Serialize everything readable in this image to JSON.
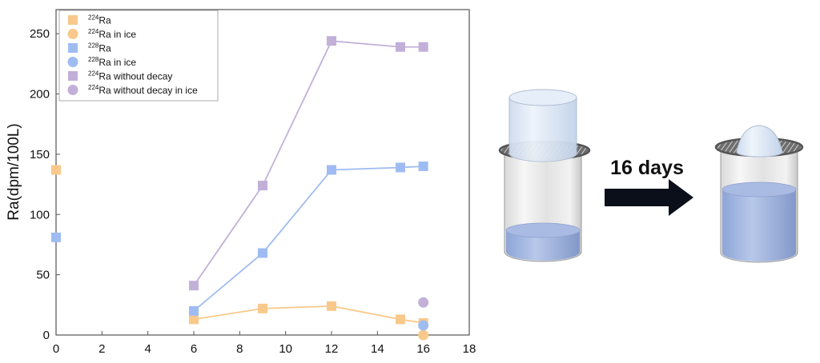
{
  "chart_data": {
    "type": "scatter",
    "ylabel": "Ra(dpm/100L)",
    "xlabel": "",
    "xlim": [
      0,
      18
    ],
    "ylim": [
      0,
      270
    ],
    "x_ticks": [
      0,
      2,
      4,
      6,
      8,
      10,
      12,
      14,
      16,
      18
    ],
    "y_ticks": [
      0,
      50,
      100,
      150,
      200,
      250
    ],
    "grid": false,
    "legend_position": "top-left",
    "series": [
      {
        "name": "Ra",
        "isotope": "224",
        "marker": "square",
        "color": "#f8c98a",
        "connected": true,
        "points": [
          [
            0,
            137
          ],
          [
            6,
            13
          ],
          [
            9,
            22
          ],
          [
            12,
            24
          ],
          [
            15,
            13
          ],
          [
            16,
            10
          ]
        ]
      },
      {
        "name": "Ra in ice",
        "isotope": "224",
        "marker": "circle",
        "color": "#f8c98a",
        "connected": false,
        "points": [
          [
            16,
            0
          ]
        ]
      },
      {
        "name": "Ra",
        "isotope": "228",
        "marker": "square",
        "color": "#9fbcf2",
        "connected": true,
        "points": [
          [
            0,
            81
          ],
          [
            6,
            20
          ],
          [
            9,
            68
          ],
          [
            12,
            137
          ],
          [
            15,
            139
          ],
          [
            16,
            140
          ]
        ]
      },
      {
        "name": "Ra in ice",
        "isotope": "228",
        "marker": "circle",
        "color": "#9fbcf2",
        "connected": false,
        "points": [
          [
            16,
            8
          ]
        ]
      },
      {
        "name": "Ra without decay",
        "isotope": "224",
        "marker": "square",
        "color": "#c2b0d9",
        "connected": true,
        "points": [
          [
            6,
            41
          ],
          [
            9,
            124
          ],
          [
            12,
            244
          ],
          [
            15,
            239
          ],
          [
            16,
            239
          ]
        ]
      },
      {
        "name": "Ra without decay in ice",
        "isotope": "224",
        "marker": "circle",
        "color": "#c2b0d9",
        "connected": false,
        "points": [
          [
            16,
            27
          ]
        ]
      }
    ]
  },
  "illustration": {
    "arrow_label": "16 days",
    "arrow_color": "#0a0f1a",
    "water_color": "#9cb2df",
    "ice_color": "#dbe7f5"
  }
}
